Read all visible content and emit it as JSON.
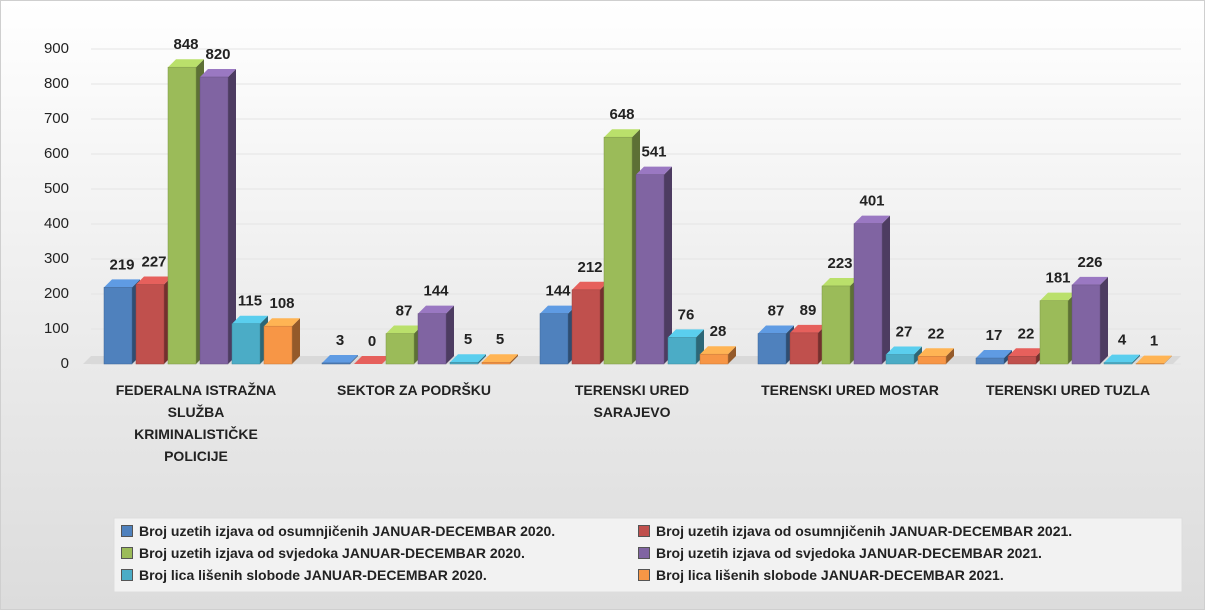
{
  "chart_data": {
    "type": "bar",
    "categories": [
      "FEDERALNA ISTRAŽNA SLUŽBA KRIMINALISTIČKE POLICIJE",
      "SEKTOR ZA PODRŠKU",
      "TERENSKI URED SARAJEVO",
      "TERENSKI URED MOSTAR",
      "TERENSKI URED TUZLA"
    ],
    "series": [
      {
        "name": "Broj uzetih izjava od osumnjičenih JANUAR-DECEMBAR 2020.",
        "color": "#4f81bd",
        "values": [
          219,
          3,
          144,
          87,
          17
        ]
      },
      {
        "name": "Broj uzetih izjava od osumnjičenih JANUAR-DECEMBAR 2021.",
        "color": "#c0504d",
        "values": [
          227,
          0,
          212,
          89,
          22
        ]
      },
      {
        "name": "Broj uzetih izjava od svjedoka JANUAR-DECEMBAR 2020.",
        "color": "#9bbb59",
        "values": [
          848,
          87,
          648,
          223,
          181
        ]
      },
      {
        "name": "Broj uzetih izjava od svjedoka JANUAR-DECEMBAR 2021.",
        "color": "#8064a2",
        "values": [
          820,
          144,
          541,
          401,
          226
        ]
      },
      {
        "name": "Broj lica lišenih slobode JANUAR-DECEMBAR 2020.",
        "color": "#4bacc6",
        "values": [
          115,
          5,
          76,
          27,
          4
        ]
      },
      {
        "name": "Broj lica lišenih slobode JANUAR-DECEMBAR 2021.",
        "color": "#f79646",
        "values": [
          108,
          5,
          28,
          22,
          1
        ]
      }
    ],
    "ylim": [
      0,
      900
    ],
    "yticks": [
      0,
      100,
      200,
      300,
      400,
      500,
      600,
      700,
      800,
      900
    ],
    "grid": true,
    "legend": "bottom"
  }
}
